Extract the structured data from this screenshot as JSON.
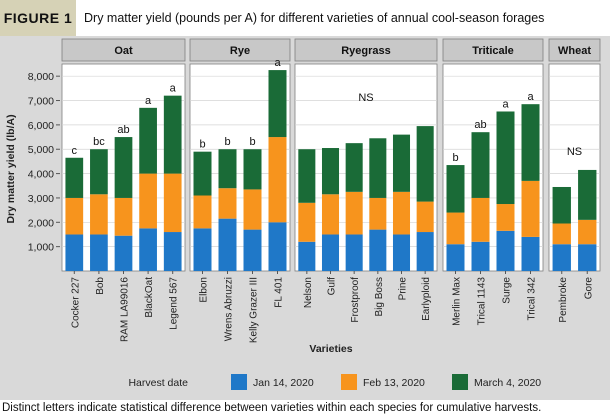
{
  "figure": {
    "label": "FIGURE 1",
    "title": "Dry matter yield (pounds per A) for different varieties of annual cool-season forages",
    "caption": "Distinct letters indicate statistical difference between varieties within each species for cumulative harvests."
  },
  "chart_data": {
    "type": "bar",
    "stacked": true,
    "xlabel": "Varieties",
    "ylabel": "Dry matter yield (lb/A)",
    "ylim": [
      0,
      8500
    ],
    "yticks": [
      1000,
      2000,
      3000,
      4000,
      5000,
      6000,
      7000,
      8000
    ],
    "ytick_labels": [
      "1,000",
      "2,000",
      "3,000",
      "4,000",
      "5,000",
      "6,000",
      "7,000",
      "8,000"
    ],
    "grid": true,
    "legend": {
      "title": "Harvest date",
      "position": "bottom"
    },
    "series": [
      {
        "name": "Jan 14, 2020",
        "color": "#1f78c8"
      },
      {
        "name": "Feb 13, 2020",
        "color": "#f7941d"
      },
      {
        "name": "March 4, 2020",
        "color": "#1a6b37"
      }
    ],
    "panels": [
      {
        "name": "Oat",
        "bars": [
          {
            "variety": "Cocker 227",
            "values": [
              1500,
              1500,
              1650
            ],
            "letter": "c"
          },
          {
            "variety": "Bob",
            "values": [
              1500,
              1650,
              1850
            ],
            "letter": "bc"
          },
          {
            "variety": "RAM LA99016",
            "values": [
              1450,
              1550,
              2500
            ],
            "letter": "ab"
          },
          {
            "variety": "BlackOat",
            "values": [
              1750,
              2250,
              2700
            ],
            "letter": "a"
          },
          {
            "variety": "Legend 567",
            "values": [
              1600,
              2400,
              3200
            ],
            "letter": "a"
          }
        ]
      },
      {
        "name": "Rye",
        "bars": [
          {
            "variety": "Elbon",
            "values": [
              1750,
              1350,
              1800
            ],
            "letter": "b"
          },
          {
            "variety": "Wrens Abruzzi",
            "values": [
              2150,
              1250,
              1600
            ],
            "letter": "b"
          },
          {
            "variety": "Kelly Grazer III",
            "values": [
              1700,
              1650,
              1650
            ],
            "letter": "b"
          },
          {
            "variety": "FL 401",
            "values": [
              2000,
              3500,
              2750
            ],
            "letter": "a"
          }
        ]
      },
      {
        "name": "Ryegrass",
        "note": "NS",
        "bars": [
          {
            "variety": "Nelson",
            "values": [
              1200,
              1600,
              2200
            ]
          },
          {
            "variety": "Gulf",
            "values": [
              1500,
              1650,
              1900
            ]
          },
          {
            "variety": "Frostproof",
            "values": [
              1500,
              1750,
              2000
            ]
          },
          {
            "variety": "Big Boss",
            "values": [
              1700,
              1300,
              2450
            ]
          },
          {
            "variety": "Prine",
            "values": [
              1500,
              1750,
              2350
            ]
          },
          {
            "variety": "Earlyploid",
            "values": [
              1600,
              1250,
              3100
            ]
          }
        ]
      },
      {
        "name": "Triticale",
        "bars": [
          {
            "variety": "Merlin Max",
            "values": [
              1100,
              1300,
              1950
            ],
            "letter": "b"
          },
          {
            "variety": "Trical 1143",
            "values": [
              1200,
              1800,
              2700
            ],
            "letter": "ab"
          },
          {
            "variety": "Surge",
            "values": [
              1650,
              1100,
              3800
            ],
            "letter": "a"
          },
          {
            "variety": "Trical 342",
            "values": [
              1400,
              2300,
              3150
            ],
            "letter": "a"
          }
        ]
      },
      {
        "name": "Wheat",
        "note": "NS",
        "bars": [
          {
            "variety": "Pembroke",
            "values": [
              1100,
              850,
              1500
            ]
          },
          {
            "variety": "Gore",
            "values": [
              1100,
              1000,
              2050
            ]
          }
        ]
      }
    ]
  }
}
